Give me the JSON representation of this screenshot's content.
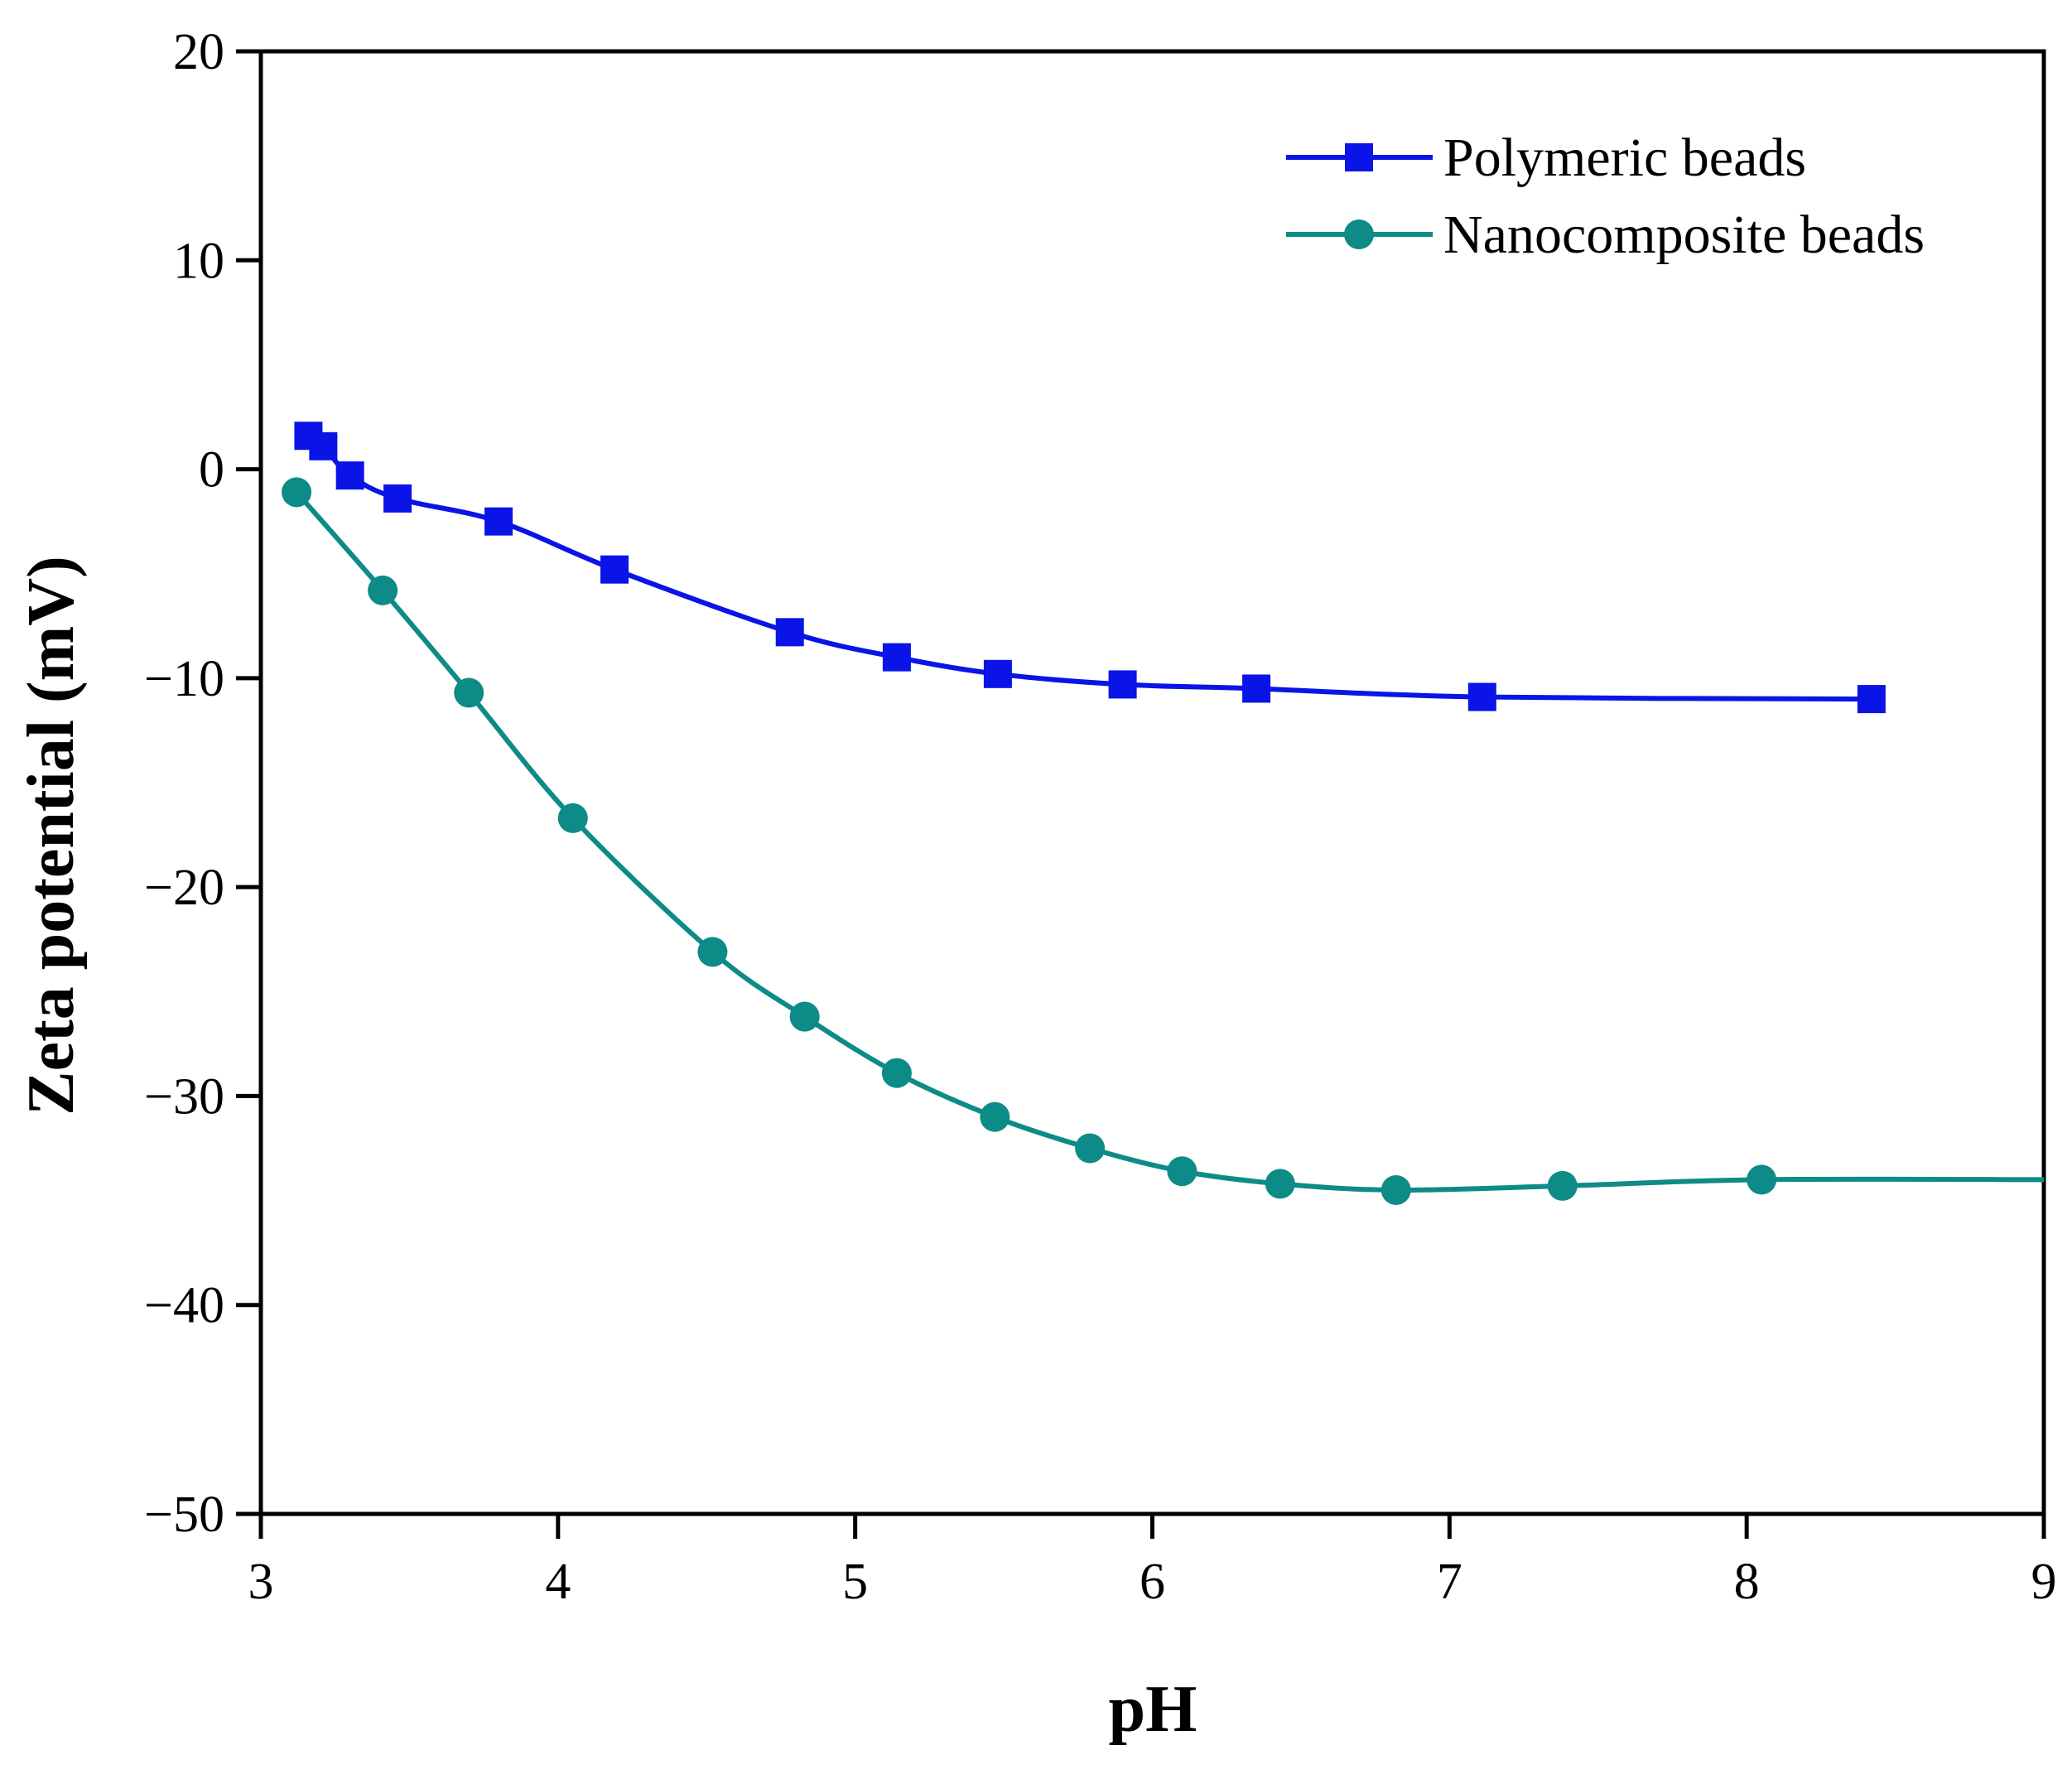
{
  "chart_data": {
    "type": "line",
    "title": "",
    "xlabel": "pH",
    "ylabel": "Zeta potential (mV)",
    "xlim": [
      3,
      9
    ],
    "ylim": [
      -50,
      20
    ],
    "xticks": [
      3,
      4,
      5,
      6,
      7,
      8,
      9
    ],
    "yticks": [
      -50,
      -40,
      -30,
      -20,
      -10,
      0,
      10,
      20
    ],
    "xtick_labels": [
      "3",
      "4",
      "5",
      "6",
      "7",
      "8",
      "9"
    ],
    "ytick_labels": [
      "−50",
      "−40",
      "−30",
      "−20",
      "−10",
      "0",
      "10",
      "20"
    ],
    "grid": false,
    "legend_position": "top-right",
    "series": [
      {
        "name": "Polymeric beads",
        "marker": "square",
        "color": "#0a14e6",
        "x": [
          3.16,
          3.21,
          3.3,
          3.46,
          3.8,
          4.19,
          4.78,
          5.14,
          5.48,
          5.9,
          6.35,
          7.11,
          8.42
        ],
        "y": [
          1.6,
          1.1,
          -0.3,
          -1.4,
          -2.5,
          -4.8,
          -7.8,
          -9.0,
          -9.8,
          -10.3,
          -10.5,
          -10.9,
          -11.0
        ]
      },
      {
        "name": "Nanocomposite beads",
        "marker": "circle",
        "color": "#0d8b87",
        "x": [
          3.12,
          3.41,
          3.7,
          4.05,
          4.52,
          4.83,
          5.14,
          5.47,
          5.79,
          6.1,
          6.43,
          6.82,
          7.38,
          8.05,
          9.0
        ],
        "y": [
          -1.1,
          -5.8,
          -10.7,
          -16.7,
          -23.1,
          -26.2,
          -28.9,
          -31.0,
          -32.5,
          -33.6,
          -34.2,
          -34.5,
          -34.3,
          -34.0,
          -34.0
        ],
        "points_with_markers": 14
      }
    ]
  }
}
